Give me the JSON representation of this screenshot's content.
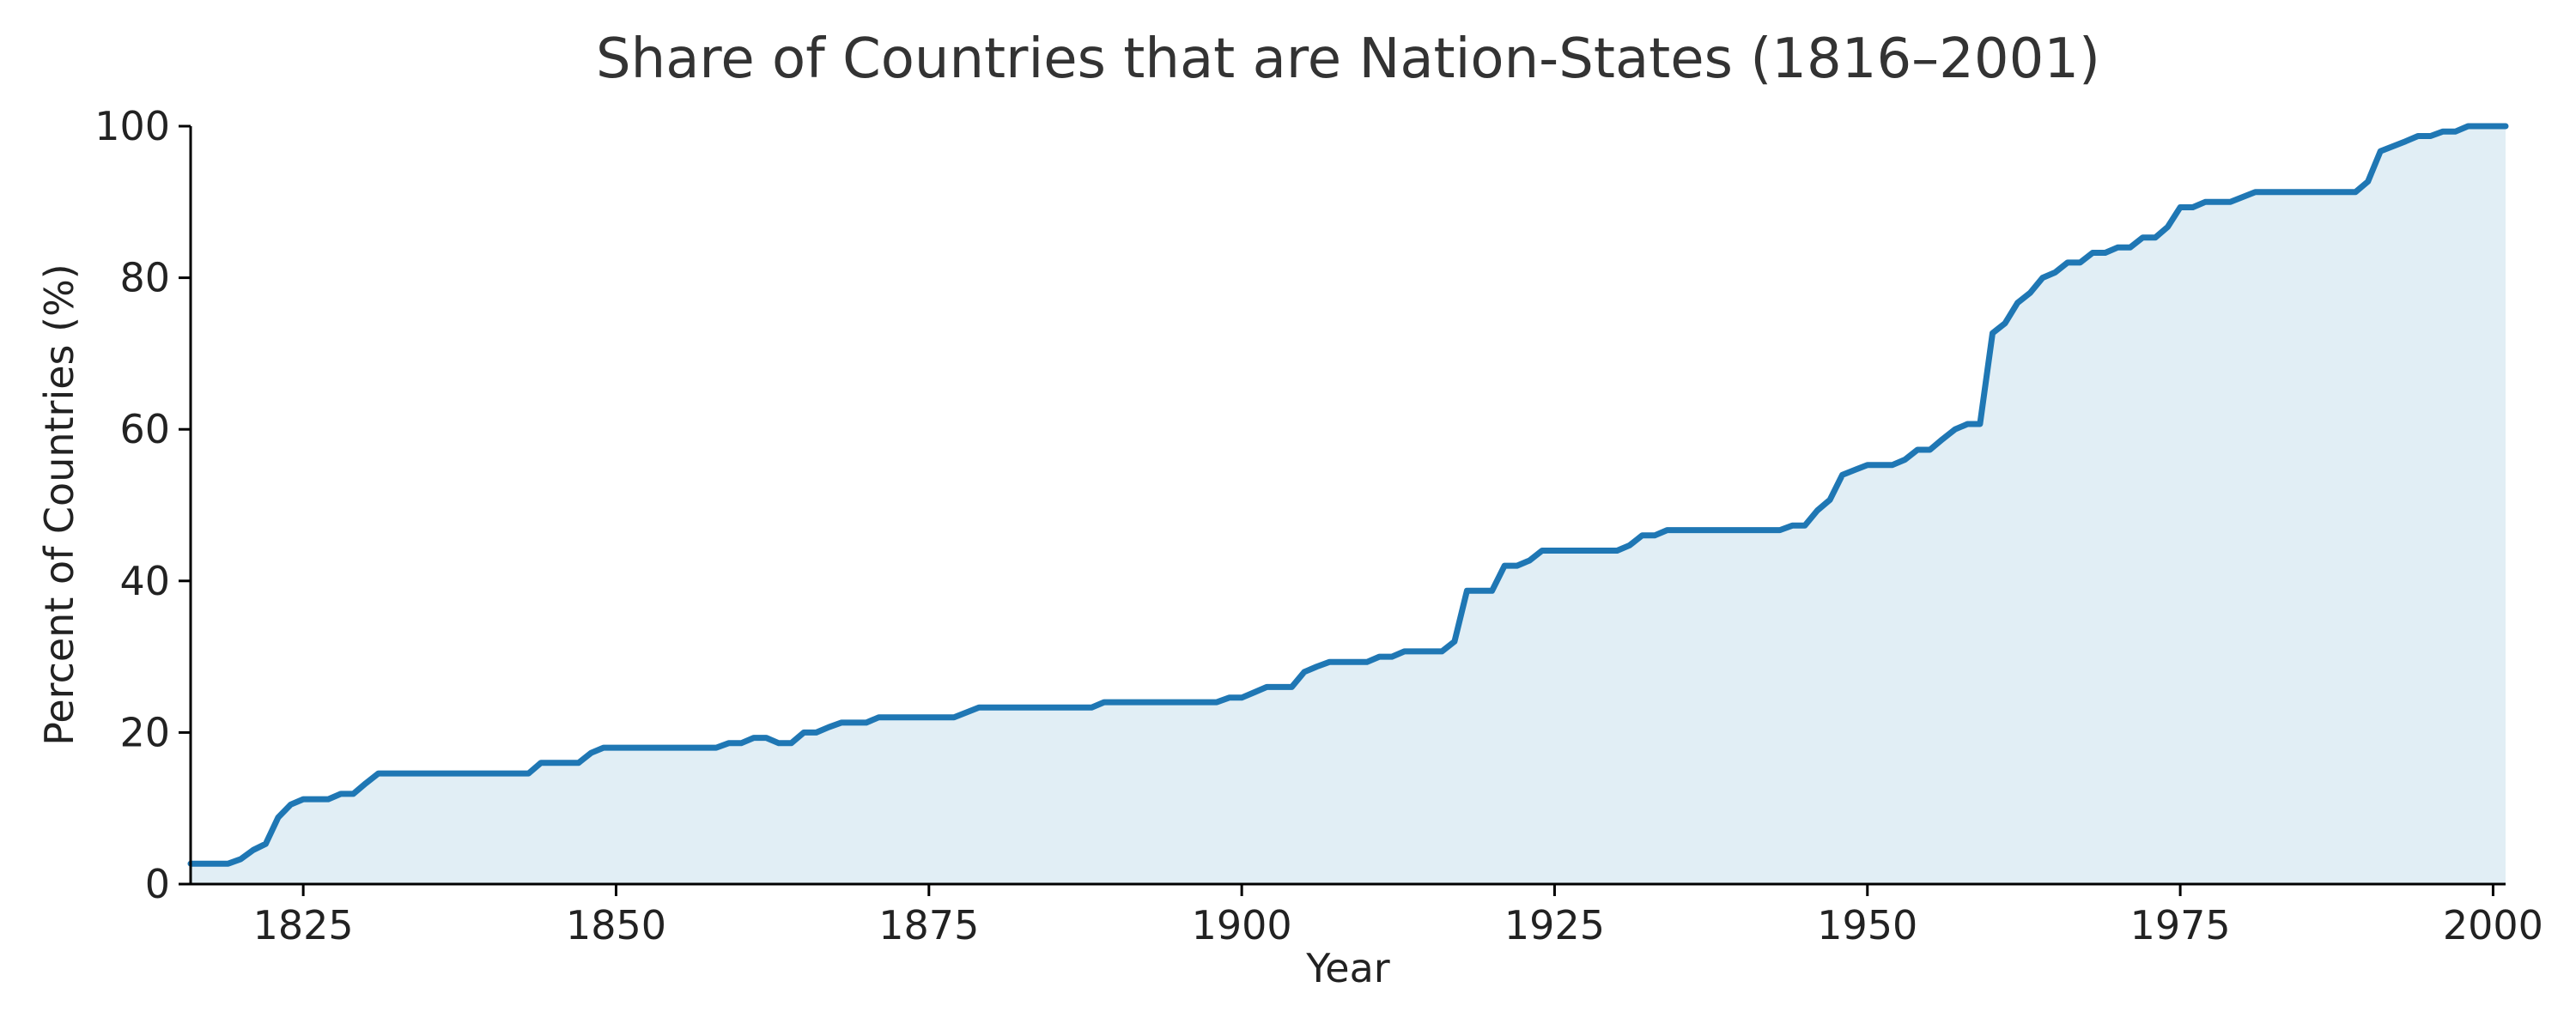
{
  "chart_data": {
    "type": "area",
    "title": "Share of Countries that are Nation-States (1816–2001)",
    "xlabel": "Year",
    "ylabel": "Percent of Countries (%)",
    "xlim": [
      1816,
      2001
    ],
    "ylim": [
      0,
      100
    ],
    "xticks": [
      1825,
      1850,
      1875,
      1900,
      1925,
      1950,
      1975,
      2000
    ],
    "yticks": [
      0,
      20,
      40,
      60,
      80,
      100
    ],
    "grid": false,
    "legend": "none",
    "colors": {
      "line": "#1f77b4",
      "fill": "#e1eef5",
      "axis": "#000000",
      "title": "#333333"
    },
    "series": [
      {
        "x": [
          1816,
          1819,
          1820,
          1821,
          1822,
          1823,
          1824,
          1825,
          1826,
          1827,
          1828,
          1829,
          1830,
          1831,
          1843,
          1844,
          1847,
          1848,
          1849,
          1858,
          1859,
          1860,
          1861,
          1862,
          1863,
          1864,
          1865,
          1866,
          1867,
          1868,
          1870,
          1871,
          1877,
          1879,
          1888,
          1889,
          1898,
          1899,
          1900,
          1901,
          1902,
          1904,
          1905,
          1906,
          1907,
          1910,
          1911,
          1912,
          1913,
          1916,
          1917,
          1918,
          1920,
          1921,
          1922,
          1923,
          1924,
          1929,
          1930,
          1931,
          1932,
          1933,
          1934,
          1943,
          1944,
          1945,
          1946,
          1947,
          1948,
          1950,
          1952,
          1953,
          1954,
          1955,
          1956,
          1957,
          1958,
          1959,
          1960,
          1961,
          1962,
          1963,
          1964,
          1965,
          1966,
          1967,
          1968,
          1969,
          1970,
          1971,
          1972,
          1973,
          1974,
          1975,
          1976,
          1977,
          1979,
          1981,
          1989,
          1990,
          1991,
          1993,
          1994,
          1995,
          1996,
          1997,
          1998,
          2001
        ],
        "y": [
          2.7,
          2.7,
          3.3,
          4.5,
          5.3,
          8.8,
          10.5,
          11.2,
          11.2,
          11.2,
          11.9,
          11.9,
          13.3,
          14.6,
          14.6,
          16.0,
          16.0,
          17.3,
          18.0,
          18.0,
          18.6,
          18.6,
          19.3,
          19.3,
          18.6,
          18.6,
          20.0,
          20.0,
          20.7,
          21.3,
          21.3,
          22.0,
          22.0,
          23.3,
          23.3,
          24.0,
          24.0,
          24.6,
          24.6,
          25.3,
          26.0,
          26.0,
          28.0,
          28.7,
          29.3,
          29.3,
          30.0,
          30.0,
          30.7,
          30.7,
          32.0,
          38.7,
          38.7,
          42.0,
          42.0,
          42.7,
          44.0,
          44.0,
          44.0,
          44.7,
          46.0,
          46.0,
          46.7,
          46.7,
          47.3,
          47.3,
          49.3,
          50.7,
          54.0,
          55.3,
          55.3,
          56.0,
          57.3,
          57.3,
          58.7,
          60.0,
          60.7,
          60.7,
          72.7,
          74.0,
          76.7,
          78.0,
          80.0,
          80.7,
          82.0,
          82.0,
          83.3,
          83.3,
          84.0,
          84.0,
          85.3,
          85.3,
          86.7,
          89.3,
          89.3,
          90.0,
          90.0,
          91.3,
          91.3,
          92.7,
          96.7,
          98.0,
          98.7,
          98.7,
          99.3,
          99.3,
          100.0,
          100.0
        ]
      }
    ]
  }
}
